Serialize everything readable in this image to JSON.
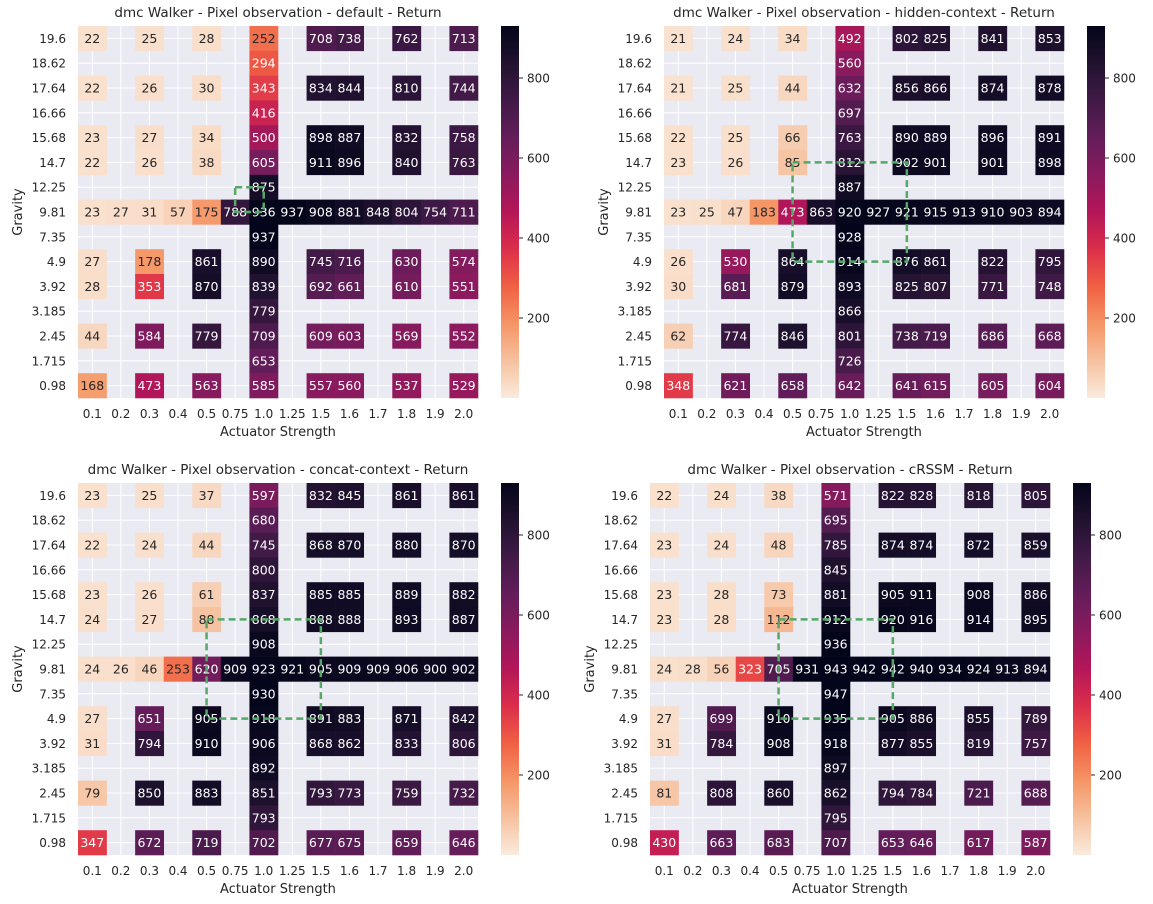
{
  "chart_data": [
    {
      "type": "heatmap",
      "title": "dmc Walker - Pixel observation - default - Return",
      "xlabel": "Actuator Strength",
      "ylabel": "Gravity",
      "x_categories": [
        "0.1",
        "0.2",
        "0.3",
        "0.4",
        "0.5",
        "0.75",
        "1.0",
        "1.25",
        "1.5",
        "1.6",
        "1.7",
        "1.8",
        "1.9",
        "2.0"
      ],
      "y_categories": [
        "19.6",
        "18.62",
        "17.64",
        "16.66",
        "15.68",
        "14.7",
        "12.25",
        "9.81",
        "7.35",
        "4.9",
        "3.92",
        "3.185",
        "2.45",
        "1.715",
        "0.98"
      ],
      "values": [
        [
          22,
          null,
          25,
          null,
          28,
          null,
          252,
          null,
          708,
          738,
          null,
          762,
          null,
          713
        ],
        [
          null,
          null,
          null,
          null,
          null,
          null,
          294,
          null,
          null,
          null,
          null,
          null,
          null,
          null
        ],
        [
          22,
          null,
          26,
          null,
          30,
          null,
          343,
          null,
          834,
          844,
          null,
          810,
          null,
          744
        ],
        [
          null,
          null,
          null,
          null,
          null,
          null,
          416,
          null,
          null,
          null,
          null,
          null,
          null,
          null
        ],
        [
          23,
          null,
          27,
          null,
          34,
          null,
          500,
          null,
          898,
          887,
          null,
          832,
          null,
          758
        ],
        [
          22,
          null,
          26,
          null,
          38,
          null,
          605,
          null,
          911,
          896,
          null,
          840,
          null,
          763
        ],
        [
          null,
          null,
          null,
          null,
          null,
          null,
          875,
          null,
          null,
          null,
          null,
          null,
          null,
          null
        ],
        [
          23,
          27,
          31,
          57,
          175,
          788,
          936,
          937,
          908,
          881,
          848,
          804,
          754,
          711
        ],
        [
          null,
          null,
          null,
          null,
          null,
          null,
          937,
          null,
          null,
          null,
          null,
          null,
          null,
          null
        ],
        [
          27,
          null,
          178,
          null,
          861,
          null,
          890,
          null,
          745,
          716,
          null,
          630,
          null,
          574
        ],
        [
          28,
          null,
          353,
          null,
          870,
          null,
          839,
          null,
          692,
          661,
          null,
          610,
          null,
          551
        ],
        [
          null,
          null,
          null,
          null,
          null,
          null,
          779,
          null,
          null,
          null,
          null,
          null,
          null,
          null
        ],
        [
          44,
          null,
          584,
          null,
          779,
          null,
          709,
          null,
          609,
          603,
          null,
          569,
          null,
          552
        ],
        [
          null,
          null,
          null,
          null,
          null,
          null,
          653,
          null,
          null,
          null,
          null,
          null,
          null,
          null
        ],
        [
          168,
          null,
          473,
          null,
          563,
          null,
          585,
          null,
          557,
          560,
          null,
          537,
          null,
          529
        ]
      ],
      "highlight": {
        "x": [
          "0.75",
          "1.0"
        ],
        "y": [
          "12.25",
          "9.81"
        ]
      },
      "colorbar": {
        "min": 0,
        "max": 930,
        "ticks": [
          200,
          400,
          600,
          800
        ]
      }
    },
    {
      "type": "heatmap",
      "title": "dmc Walker - Pixel observation - hidden-context - Return",
      "xlabel": "Actuator Strength",
      "ylabel": "Gravity",
      "x_categories": [
        "0.1",
        "0.2",
        "0.3",
        "0.4",
        "0.5",
        "0.75",
        "1.0",
        "1.25",
        "1.5",
        "1.6",
        "1.7",
        "1.8",
        "1.9",
        "2.0"
      ],
      "y_categories": [
        "19.6",
        "18.62",
        "17.64",
        "16.66",
        "15.68",
        "14.7",
        "12.25",
        "9.81",
        "7.35",
        "4.9",
        "3.92",
        "3.185",
        "2.45",
        "1.715",
        "0.98"
      ],
      "values": [
        [
          21,
          null,
          24,
          null,
          34,
          null,
          492,
          null,
          802,
          825,
          null,
          841,
          null,
          853
        ],
        [
          null,
          null,
          null,
          null,
          null,
          null,
          560,
          null,
          null,
          null,
          null,
          null,
          null,
          null
        ],
        [
          21,
          null,
          25,
          null,
          44,
          null,
          632,
          null,
          856,
          866,
          null,
          874,
          null,
          878
        ],
        [
          null,
          null,
          null,
          null,
          null,
          null,
          697,
          null,
          null,
          null,
          null,
          null,
          null,
          null
        ],
        [
          22,
          null,
          25,
          null,
          66,
          null,
          763,
          null,
          890,
          889,
          null,
          896,
          null,
          891
        ],
        [
          23,
          null,
          26,
          null,
          85,
          null,
          812,
          null,
          902,
          901,
          null,
          901,
          null,
          898
        ],
        [
          null,
          null,
          null,
          null,
          null,
          null,
          887,
          null,
          null,
          null,
          null,
          null,
          null,
          null
        ],
        [
          23,
          25,
          47,
          183,
          473,
          863,
          920,
          927,
          921,
          915,
          913,
          910,
          903,
          894
        ],
        [
          null,
          null,
          null,
          null,
          null,
          null,
          928,
          null,
          null,
          null,
          null,
          null,
          null,
          null
        ],
        [
          26,
          null,
          530,
          null,
          864,
          null,
          914,
          null,
          876,
          861,
          null,
          822,
          null,
          795
        ],
        [
          30,
          null,
          681,
          null,
          879,
          null,
          893,
          null,
          825,
          807,
          null,
          771,
          null,
          748
        ],
        [
          null,
          null,
          null,
          null,
          null,
          null,
          866,
          null,
          null,
          null,
          null,
          null,
          null,
          null
        ],
        [
          62,
          null,
          774,
          null,
          846,
          null,
          801,
          null,
          738,
          719,
          null,
          686,
          null,
          668
        ],
        [
          null,
          null,
          null,
          null,
          null,
          null,
          726,
          null,
          null,
          null,
          null,
          null,
          null,
          null
        ],
        [
          348,
          null,
          621,
          null,
          658,
          null,
          642,
          null,
          641,
          615,
          null,
          605,
          null,
          604
        ]
      ],
      "highlight": {
        "x": [
          "0.5",
          "1.5"
        ],
        "y": [
          "14.7",
          "4.9"
        ]
      },
      "colorbar": {
        "min": 0,
        "max": 930,
        "ticks": [
          200,
          400,
          600,
          800
        ]
      }
    },
    {
      "type": "heatmap",
      "title": "dmc Walker - Pixel observation - concat-context - Return",
      "xlabel": "Actuator Strength",
      "ylabel": "Gravity",
      "x_categories": [
        "0.1",
        "0.2",
        "0.3",
        "0.4",
        "0.5",
        "0.75",
        "1.0",
        "1.25",
        "1.5",
        "1.6",
        "1.7",
        "1.8",
        "1.9",
        "2.0"
      ],
      "y_categories": [
        "19.6",
        "18.62",
        "17.64",
        "16.66",
        "15.68",
        "14.7",
        "12.25",
        "9.81",
        "7.35",
        "4.9",
        "3.92",
        "3.185",
        "2.45",
        "1.715",
        "0.98"
      ],
      "values": [
        [
          23,
          null,
          25,
          null,
          37,
          null,
          597,
          null,
          832,
          845,
          null,
          861,
          null,
          861
        ],
        [
          null,
          null,
          null,
          null,
          null,
          null,
          680,
          null,
          null,
          null,
          null,
          null,
          null,
          null
        ],
        [
          22,
          null,
          24,
          null,
          44,
          null,
          745,
          null,
          868,
          870,
          null,
          880,
          null,
          870
        ],
        [
          null,
          null,
          null,
          null,
          null,
          null,
          800,
          null,
          null,
          null,
          null,
          null,
          null,
          null
        ],
        [
          23,
          null,
          26,
          null,
          61,
          null,
          837,
          null,
          885,
          885,
          null,
          889,
          null,
          882
        ],
        [
          24,
          null,
          27,
          null,
          88,
          null,
          868,
          null,
          888,
          888,
          null,
          893,
          null,
          887
        ],
        [
          null,
          null,
          null,
          null,
          null,
          null,
          908,
          null,
          null,
          null,
          null,
          null,
          null,
          null
        ],
        [
          24,
          26,
          46,
          253,
          620,
          909,
          923,
          921,
          905,
          909,
          909,
          906,
          900,
          902
        ],
        [
          null,
          null,
          null,
          null,
          null,
          null,
          930,
          null,
          null,
          null,
          null,
          null,
          null,
          null
        ],
        [
          27,
          null,
          651,
          null,
          905,
          null,
          918,
          null,
          891,
          883,
          null,
          871,
          null,
          842
        ],
        [
          31,
          null,
          794,
          null,
          910,
          null,
          906,
          null,
          868,
          862,
          null,
          833,
          null,
          806
        ],
        [
          null,
          null,
          null,
          null,
          null,
          null,
          892,
          null,
          null,
          null,
          null,
          null,
          null,
          null
        ],
        [
          79,
          null,
          850,
          null,
          883,
          null,
          851,
          null,
          793,
          773,
          null,
          759,
          null,
          732
        ],
        [
          null,
          null,
          null,
          null,
          null,
          null,
          793,
          null,
          null,
          null,
          null,
          null,
          null,
          null
        ],
        [
          347,
          null,
          672,
          null,
          719,
          null,
          702,
          null,
          677,
          675,
          null,
          659,
          null,
          646
        ]
      ],
      "highlight": {
        "x": [
          "0.5",
          "1.5"
        ],
        "y": [
          "14.7",
          "4.9"
        ]
      },
      "colorbar": {
        "min": 0,
        "max": 930,
        "ticks": [
          200,
          400,
          600,
          800
        ]
      }
    },
    {
      "type": "heatmap",
      "title": "dmc Walker - Pixel observation - cRSSM - Return",
      "xlabel": "Actuator Strength",
      "ylabel": "Gravity",
      "x_categories": [
        "0.1",
        "0.2",
        "0.3",
        "0.4",
        "0.5",
        "0.75",
        "1.0",
        "1.25",
        "1.5",
        "1.6",
        "1.7",
        "1.8",
        "1.9",
        "2.0"
      ],
      "y_categories": [
        "19.6",
        "18.62",
        "17.64",
        "16.66",
        "15.68",
        "14.7",
        "12.25",
        "9.81",
        "7.35",
        "4.9",
        "3.92",
        "3.185",
        "2.45",
        "1.715",
        "0.98"
      ],
      "values": [
        [
          22,
          null,
          24,
          null,
          38,
          null,
          571,
          null,
          822,
          828,
          null,
          818,
          null,
          805
        ],
        [
          null,
          null,
          null,
          null,
          null,
          null,
          695,
          null,
          null,
          null,
          null,
          null,
          null,
          null
        ],
        [
          23,
          null,
          24,
          null,
          48,
          null,
          785,
          null,
          874,
          874,
          null,
          872,
          null,
          859
        ],
        [
          null,
          null,
          null,
          null,
          null,
          null,
          845,
          null,
          null,
          null,
          null,
          null,
          null,
          null
        ],
        [
          23,
          null,
          28,
          null,
          73,
          null,
          881,
          null,
          905,
          911,
          null,
          908,
          null,
          886
        ],
        [
          23,
          null,
          28,
          null,
          112,
          null,
          912,
          null,
          920,
          916,
          null,
          914,
          null,
          895
        ],
        [
          null,
          null,
          null,
          null,
          null,
          null,
          936,
          null,
          null,
          null,
          null,
          null,
          null,
          null
        ],
        [
          24,
          28,
          56,
          323,
          705,
          931,
          943,
          942,
          942,
          940,
          934,
          924,
          913,
          894
        ],
        [
          null,
          null,
          null,
          null,
          null,
          null,
          947,
          null,
          null,
          null,
          null,
          null,
          null,
          null
        ],
        [
          27,
          null,
          699,
          null,
          910,
          null,
          935,
          null,
          905,
          886,
          null,
          855,
          null,
          789
        ],
        [
          31,
          null,
          784,
          null,
          908,
          null,
          918,
          null,
          877,
          855,
          null,
          819,
          null,
          757
        ],
        [
          null,
          null,
          null,
          null,
          null,
          null,
          897,
          null,
          null,
          null,
          null,
          null,
          null,
          null
        ],
        [
          81,
          null,
          808,
          null,
          860,
          null,
          862,
          null,
          794,
          784,
          null,
          721,
          null,
          688
        ],
        [
          null,
          null,
          null,
          null,
          null,
          null,
          795,
          null,
          null,
          null,
          null,
          null,
          null,
          null
        ],
        [
          430,
          null,
          663,
          null,
          683,
          null,
          707,
          null,
          653,
          646,
          null,
          617,
          null,
          587
        ]
      ],
      "highlight": {
        "x": [
          "0.5",
          "1.5"
        ],
        "y": [
          "14.7",
          "4.9"
        ]
      },
      "colorbar": {
        "min": 0,
        "max": 930,
        "ticks": [
          200,
          400,
          600,
          800
        ]
      }
    }
  ]
}
